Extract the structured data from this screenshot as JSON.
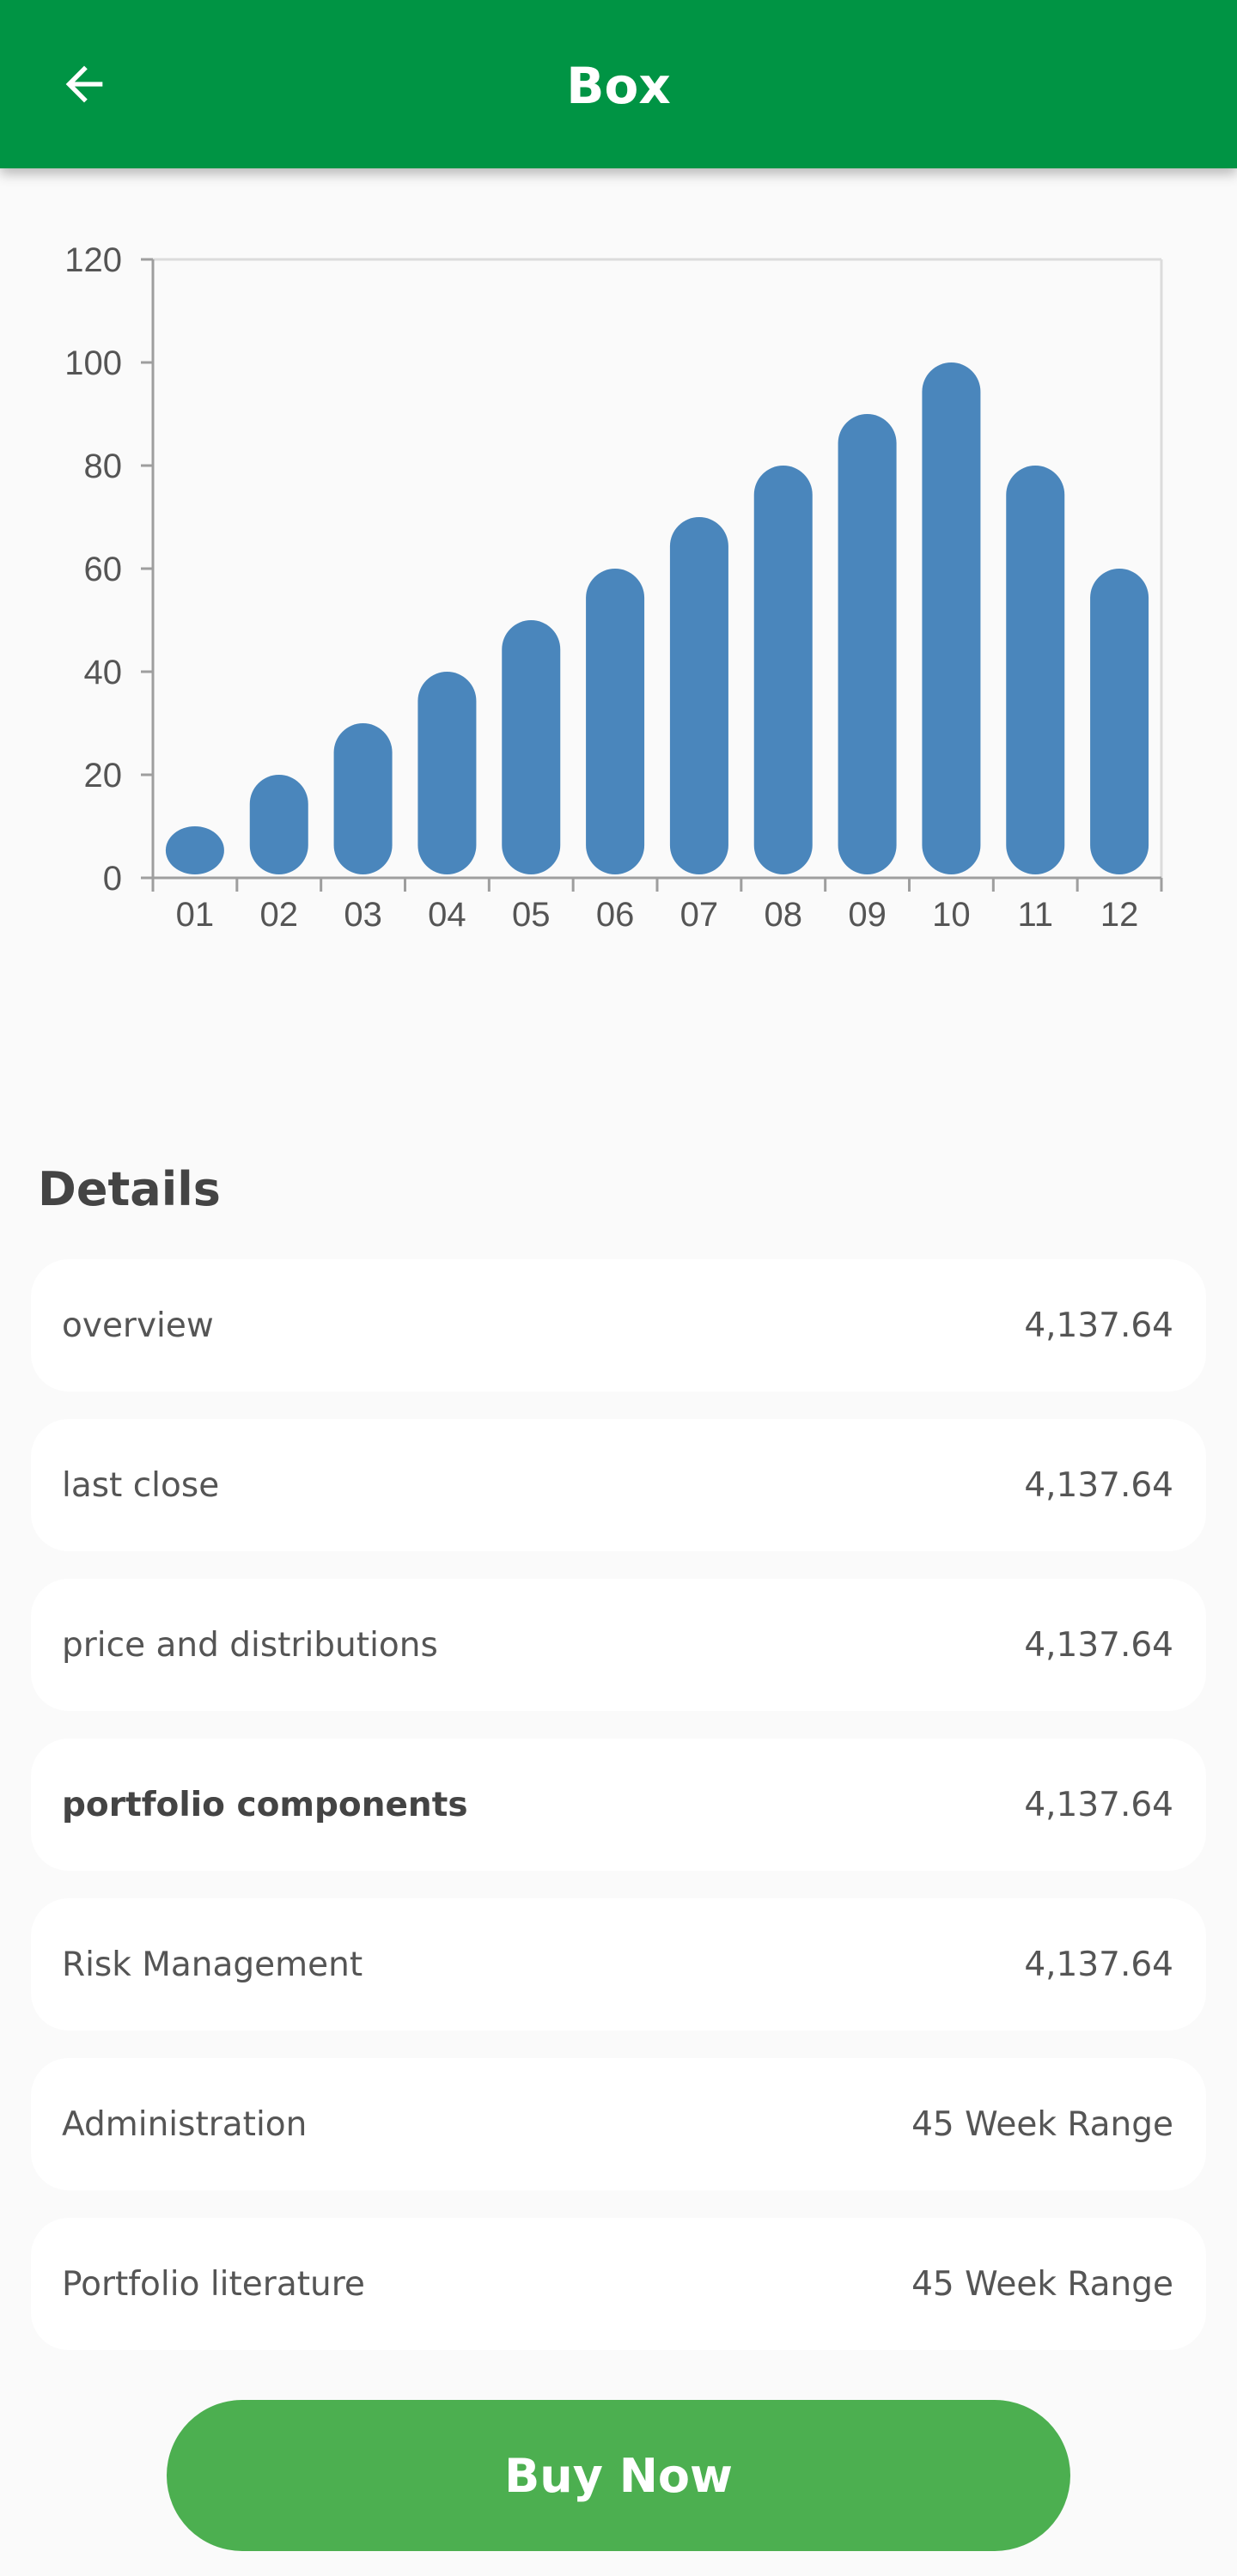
{
  "appbar": {
    "title": "Box",
    "back_icon": "arrow-left-icon"
  },
  "chart_data": {
    "type": "bar",
    "categories": [
      "01",
      "02",
      "03",
      "04",
      "05",
      "06",
      "07",
      "08",
      "09",
      "10",
      "11",
      "12"
    ],
    "values": [
      10,
      20,
      30,
      40,
      50,
      60,
      70,
      80,
      90,
      100,
      80,
      60
    ],
    "y_ticks": [
      "0",
      "20",
      "40",
      "60",
      "80",
      "100",
      "120"
    ],
    "ylim": [
      0,
      120
    ],
    "title": "",
    "xlabel": "",
    "ylabel": "",
    "grid": false,
    "bar_color": "#4a86bc"
  },
  "details": {
    "heading": "Details",
    "rows": [
      {
        "label": "overview",
        "value": "4,137.64"
      },
      {
        "label": "last close",
        "value": "4,137.64"
      },
      {
        "label": "price and distributions",
        "value": "4,137.64"
      },
      {
        "label": "portfolio components",
        "value": "4,137.64"
      },
      {
        "label": "Risk Management",
        "value": "4,137.64"
      },
      {
        "label": "Administration",
        "value": "45 Week Range"
      },
      {
        "label": "Portfolio literature",
        "value": "45 Week Range"
      }
    ]
  },
  "buy_button": {
    "label": "Buy Now"
  },
  "colors": {
    "appbar": "#009444",
    "button": "#4caf50",
    "bar": "#4a86bc"
  }
}
